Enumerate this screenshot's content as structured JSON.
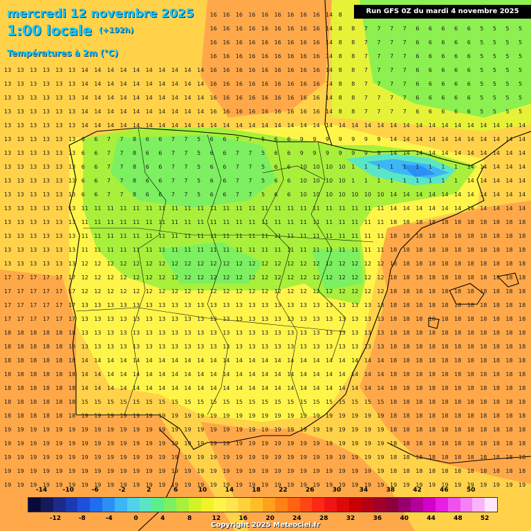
{
  "header": {
    "date_line": "mercredi 12 novembre 2025",
    "time_line": "1:00 locale",
    "lead_time": "(+192h)",
    "parameter": "Températures à 2m (°C)",
    "run_info": "Run GFS 0Z du mardi 4 novembre 2025"
  },
  "legend": {
    "top_labels": [
      "-14",
      "-10",
      "-6",
      "-2",
      "2",
      "6",
      "10",
      "14",
      "18",
      "22",
      "26",
      "30",
      "34",
      "38",
      "42",
      "46",
      "50"
    ],
    "bottom_labels": [
      "-12",
      "-8",
      "-4",
      "0",
      "4",
      "8",
      "12",
      "16",
      "20",
      "24",
      "28",
      "32",
      "36",
      "40",
      "44",
      "48",
      "52"
    ],
    "colors": [
      "#0a0a3a",
      "#14195a",
      "#1c2a8a",
      "#1a3ab4",
      "#1e50dc",
      "#1f6ef0",
      "#2a90f5",
      "#3cb6f5",
      "#50d2ec",
      "#5ae6c6",
      "#5aee8c",
      "#7cf060",
      "#a8f03c",
      "#d2f22a",
      "#f2f22a",
      "#fff54a",
      "#ffe650",
      "#ffd23c",
      "#ffbe28",
      "#ffa01e",
      "#ff8214",
      "#ff6410",
      "#ff4614",
      "#ff2814",
      "#f01414",
      "#dc0a0a",
      "#c80000",
      "#b40014",
      "#a0002a",
      "#8c003c",
      "#96006e",
      "#b4009b",
      "#d200c8",
      "#e61ee6",
      "#f050f0",
      "#f582f5",
      "#fab4fa",
      "#ffe6ff"
    ],
    "unit": "°C"
  },
  "footer": {
    "copyright": "Copyright 2025 Meteociel.fr"
  }
}
